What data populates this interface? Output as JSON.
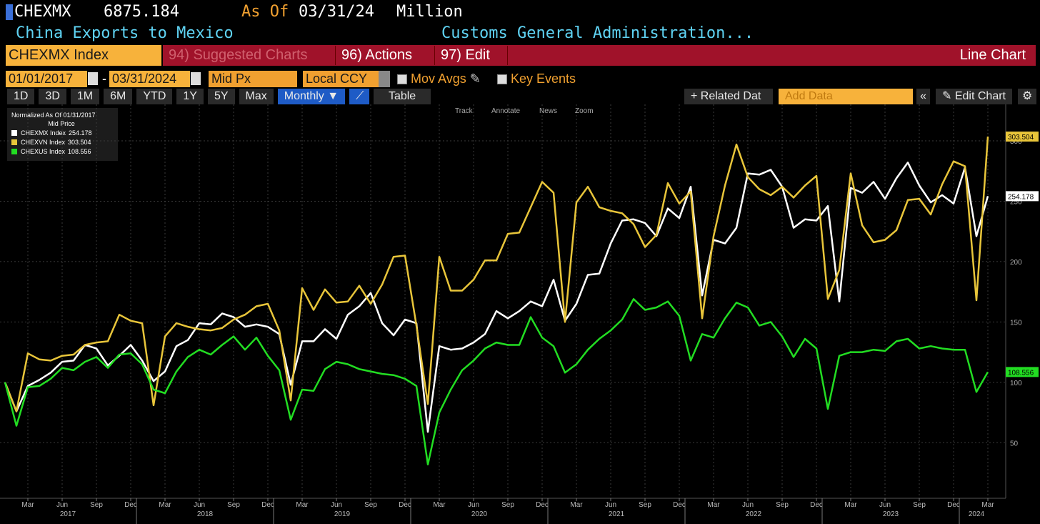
{
  "header": {
    "ticker": "CHEXMX",
    "price": 6875.184,
    "as_of_label": "As Of",
    "as_of_date": "03/31/24",
    "unit": "Million",
    "description": "China Exports to Mexico",
    "source": "Customs General Administration..."
  },
  "menu": {
    "security": "CHEXMX Index",
    "suggested": "94) Suggested Charts",
    "actions": "96) Actions",
    "edit": "97) Edit",
    "view": "Line Chart"
  },
  "settings": {
    "start_date": "01/01/2017",
    "range_separator": "-",
    "end_date": "03/31/2024",
    "field": "Mid Px",
    "currency": "Local CCY",
    "mov_avgs": "Mov Avgs",
    "key_events": "Key Events"
  },
  "toolbar": {
    "periods": [
      "1D",
      "3D",
      "1M",
      "6M",
      "YTD",
      "1Y",
      "5Y",
      "Max"
    ],
    "frequency": "Monthly ▼",
    "table": "Table",
    "related": "+ Related Dat",
    "add_data": "Add Data",
    "edit_chart": "Edit Chart"
  },
  "chart_tools": [
    "Track",
    "Annotate",
    "News",
    "Zoom"
  ],
  "chart_data": {
    "type": "line",
    "legend_title": "Normalized As Of 01/31/2017",
    "legend_subtitle": "Mid Price",
    "legend": "upper left",
    "grid": true,
    "x": [
      "2017-01",
      "2017-02",
      "2017-03",
      "2017-04",
      "2017-05",
      "2017-06",
      "2017-07",
      "2017-08",
      "2017-09",
      "2017-10",
      "2017-11",
      "2017-12",
      "2018-01",
      "2018-02",
      "2018-03",
      "2018-04",
      "2018-05",
      "2018-06",
      "2018-07",
      "2018-08",
      "2018-09",
      "2018-10",
      "2018-11",
      "2018-12",
      "2019-01",
      "2019-02",
      "2019-03",
      "2019-04",
      "2019-05",
      "2019-06",
      "2019-07",
      "2019-08",
      "2019-09",
      "2019-10",
      "2019-11",
      "2019-12",
      "2020-01",
      "2020-02",
      "2020-03",
      "2020-04",
      "2020-05",
      "2020-06",
      "2020-07",
      "2020-08",
      "2020-09",
      "2020-10",
      "2020-11",
      "2020-12",
      "2021-01",
      "2021-02",
      "2021-03",
      "2021-04",
      "2021-05",
      "2021-06",
      "2021-07",
      "2021-08",
      "2021-09",
      "2021-10",
      "2021-11",
      "2021-12",
      "2022-01",
      "2022-02",
      "2022-03",
      "2022-04",
      "2022-05",
      "2022-06",
      "2022-07",
      "2022-08",
      "2022-09",
      "2022-10",
      "2022-11",
      "2022-12",
      "2023-01",
      "2023-02",
      "2023-03",
      "2023-04",
      "2023-05",
      "2023-06",
      "2023-07",
      "2023-08",
      "2023-09",
      "2023-10",
      "2023-11",
      "2023-12",
      "2024-01",
      "2024-02",
      "2024-03"
    ],
    "xlim": [
      "2017-01",
      "2024-03"
    ],
    "xticks": [
      {
        "value": "2017-03",
        "label": "Mar"
      },
      {
        "value": "2017-06",
        "label": "Jun"
      },
      {
        "value": "2017-09",
        "label": "Sep"
      },
      {
        "value": "2017-12",
        "label": "Dec"
      },
      {
        "value": "2018-03",
        "label": "Mar"
      },
      {
        "value": "2018-06",
        "label": "Jun"
      },
      {
        "value": "2018-09",
        "label": "Sep"
      },
      {
        "value": "2018-12",
        "label": "Dec"
      },
      {
        "value": "2019-03",
        "label": "Mar"
      },
      {
        "value": "2019-06",
        "label": "Jun"
      },
      {
        "value": "2019-09",
        "label": "Sep"
      },
      {
        "value": "2019-12",
        "label": "Dec"
      },
      {
        "value": "2020-03",
        "label": "Mar"
      },
      {
        "value": "2020-06",
        "label": "Jun"
      },
      {
        "value": "2020-09",
        "label": "Sep"
      },
      {
        "value": "2020-12",
        "label": "Dec"
      },
      {
        "value": "2021-03",
        "label": "Mar"
      },
      {
        "value": "2021-06",
        "label": "Jun"
      },
      {
        "value": "2021-09",
        "label": "Sep"
      },
      {
        "value": "2021-12",
        "label": "Dec"
      },
      {
        "value": "2022-03",
        "label": "Mar"
      },
      {
        "value": "2022-06",
        "label": "Jun"
      },
      {
        "value": "2022-09",
        "label": "Sep"
      },
      {
        "value": "2022-12",
        "label": "Dec"
      },
      {
        "value": "2023-03",
        "label": "Mar"
      },
      {
        "value": "2023-06",
        "label": "Jun"
      },
      {
        "value": "2023-09",
        "label": "Sep"
      },
      {
        "value": "2023-12",
        "label": "Dec"
      },
      {
        "value": "2024-03",
        "label": "Mar"
      }
    ],
    "x_year_labels": [
      2017,
      2018,
      2019,
      2020,
      2021,
      2022,
      2023,
      2024
    ],
    "ylim": [
      4,
      329
    ],
    "yticks": [
      50,
      100,
      150,
      200,
      250,
      300
    ],
    "series": [
      {
        "name": "CHEXMX Index",
        "color": "#ffffff",
        "values": [
          100,
          76,
          97,
          102,
          108,
          117,
          118,
          131,
          128,
          114,
          122,
          131,
          118,
          101,
          109,
          130,
          135,
          149,
          148,
          157,
          154,
          146,
          148,
          146,
          140,
          98,
          134,
          134,
          144,
          136,
          156,
          163,
          174,
          149,
          139,
          152,
          149,
          59,
          130,
          127,
          128,
          133,
          140,
          159,
          153,
          159,
          167,
          163,
          185,
          151,
          165,
          189,
          190,
          215,
          234,
          235,
          232,
          221,
          244,
          236,
          262,
          172,
          218,
          215,
          228,
          273,
          272,
          276,
          262,
          228,
          235,
          234,
          246,
          167,
          261,
          257,
          266,
          252,
          269,
          282,
          263,
          249,
          255,
          248,
          278,
          221,
          254.178
        ]
      },
      {
        "name": "CHEXVN Index",
        "color": "#e8c53a",
        "values": [
          100,
          76,
          124,
          119,
          118,
          122,
          123,
          131,
          133,
          134,
          156,
          151,
          149,
          81,
          138,
          149,
          146,
          144,
          143,
          145,
          152,
          156,
          163,
          165,
          143,
          85,
          178,
          160,
          177,
          166,
          167,
          180,
          165,
          181,
          204,
          205,
          147,
          82,
          204,
          176,
          176,
          185,
          201,
          201,
          223,
          224,
          245,
          266,
          257,
          150,
          249,
          262,
          245,
          242,
          240,
          231,
          212,
          222,
          265,
          248,
          258,
          153,
          221,
          263,
          297,
          270,
          260,
          255,
          262,
          253,
          263,
          271,
          169,
          193,
          273,
          230,
          216,
          218,
          226,
          251,
          252,
          239,
          264,
          283,
          279,
          168,
          303.504
        ]
      },
      {
        "name": "CHEXUS Index",
        "color": "#22dd22",
        "values": [
          100,
          64,
          96,
          97,
          103,
          112,
          110,
          117,
          121,
          112,
          123,
          124,
          115,
          94,
          91,
          109,
          121,
          127,
          123,
          131,
          138,
          127,
          137,
          122,
          110,
          69,
          94,
          93,
          111,
          117,
          115,
          111,
          109,
          107,
          106,
          103,
          97,
          32,
          75,
          94,
          110,
          118,
          128,
          133,
          131,
          131,
          154,
          137,
          130,
          108,
          115,
          127,
          136,
          143,
          152,
          169,
          160,
          162,
          167,
          155,
          118,
          140,
          137,
          153,
          166,
          162,
          147,
          150,
          138,
          121,
          136,
          128,
          78,
          122,
          125,
          125,
          127,
          126,
          134,
          136,
          128,
          130,
          128,
          127,
          127,
          92,
          108.556
        ]
      }
    ]
  }
}
